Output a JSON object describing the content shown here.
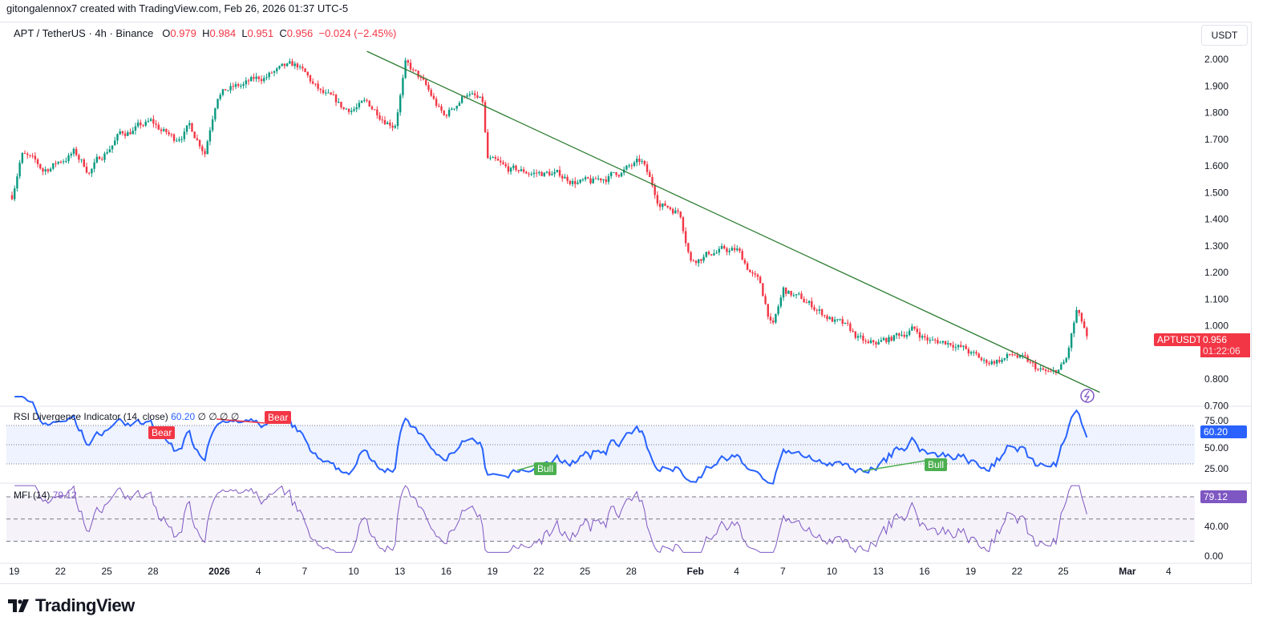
{
  "credit": "gitongalennox7 created with TradingView.com, Feb 26, 2026 01:37 UTC-5",
  "legend": {
    "symbol": "APT / TetherUS · 4h · Binance",
    "o_label": "O",
    "o": "0.979",
    "h_label": "H",
    "h": "0.984",
    "l_label": "L",
    "l": "0.951",
    "c_label": "C",
    "c": "0.956",
    "change": "−0.024 (−2.45%)"
  },
  "currency_button": "USDT",
  "price_tag": {
    "symbol": "APTUSDT",
    "price": "0.956",
    "countdown": "01:22:06"
  },
  "price_axis": [
    "2.000",
    "1.900",
    "1.800",
    "1.700",
    "1.600",
    "1.500",
    "1.400",
    "1.300",
    "1.200",
    "1.100",
    "1.000",
    "0.800",
    "0.700"
  ],
  "rsi": {
    "title": "RSI Divergence Indicator (14, close)",
    "value": "60.20",
    "extras": "∅  ∅  ∅  ∅",
    "axis": [
      "75.00",
      "50.00",
      "25.00"
    ],
    "labels": [
      "Bear",
      "Bear",
      "Bull",
      "Bull"
    ]
  },
  "mfi": {
    "title": "MFI (14)",
    "value": "79.12",
    "axis": [
      "40.00",
      "0.00"
    ]
  },
  "time_axis": [
    "19",
    "22",
    "25",
    "28",
    "2026",
    "4",
    "7",
    "10",
    "13",
    "16",
    "19",
    "22",
    "25",
    "28",
    "Feb",
    "4",
    "7",
    "10",
    "13",
    "16",
    "19",
    "22",
    "25",
    "Mar",
    "4"
  ],
  "logo": "TradingView",
  "colors": {
    "up": "#089981",
    "down": "#f23645",
    "rsi": "#2962ff",
    "mfi": "#7e57c2",
    "trend": "#2e7d32"
  },
  "chart_data": {
    "type": "candlestick",
    "timeframe": "4h",
    "ylim": [
      0.68,
      2.05
    ],
    "x_unit": "days since Dec 19 2025",
    "anchors": [
      [
        0,
        1.49
      ],
      [
        0.6,
        1.65
      ],
      [
        2,
        1.58
      ],
      [
        4,
        1.65
      ],
      [
        5,
        1.58
      ],
      [
        7,
        1.72
      ],
      [
        9,
        1.76
      ],
      [
        10.5,
        1.7
      ],
      [
        11.5,
        1.75
      ],
      [
        12.5,
        1.66
      ],
      [
        13.3,
        1.88
      ],
      [
        15,
        1.9
      ],
      [
        17,
        1.95
      ],
      [
        18.5,
        1.97
      ],
      [
        20,
        1.87
      ],
      [
        21.5,
        1.81
      ],
      [
        23,
        1.83
      ],
      [
        24.8,
        1.76
      ],
      [
        25.5,
        1.98
      ],
      [
        26.5,
        1.92
      ],
      [
        28,
        1.78
      ],
      [
        29.5,
        1.88
      ],
      [
        30.5,
        1.83
      ],
      [
        30.8,
        1.62
      ],
      [
        32,
        1.58
      ],
      [
        35,
        1.57
      ],
      [
        37.5,
        1.53
      ],
      [
        39,
        1.57
      ],
      [
        40.8,
        1.61
      ],
      [
        42,
        1.46
      ],
      [
        43.3,
        1.43
      ],
      [
        44,
        1.25
      ],
      [
        45.5,
        1.28
      ],
      [
        47,
        1.28
      ],
      [
        48.5,
        1.15
      ],
      [
        49.3,
        0.99
      ],
      [
        50,
        1.13
      ],
      [
        52,
        1.07
      ],
      [
        54,
        0.99
      ],
      [
        55.5,
        0.92
      ],
      [
        57,
        0.95
      ],
      [
        58.3,
        0.99
      ],
      [
        59.6,
        0.94
      ],
      [
        61,
        0.94
      ],
      [
        63,
        0.86
      ],
      [
        65,
        0.89
      ],
      [
        66.2,
        0.84
      ],
      [
        67.4,
        0.81
      ],
      [
        68.3,
        0.86
      ],
      [
        69,
        1.05
      ],
      [
        69.7,
        0.956
      ]
    ],
    "trendline": [
      [
        23,
        2.03
      ],
      [
        70.5,
        0.75
      ]
    ]
  }
}
